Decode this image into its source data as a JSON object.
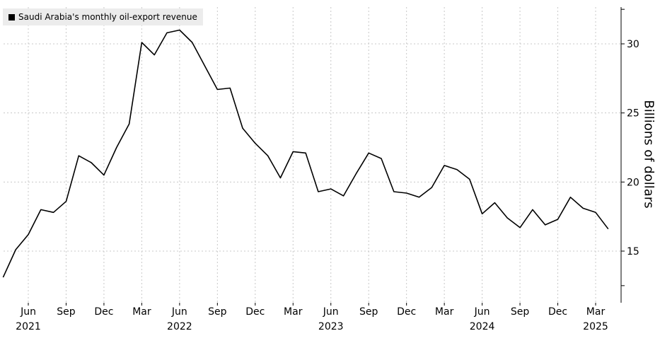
{
  "chart_data": {
    "type": "line",
    "legend": {
      "label": "Saudi Arabia's monthly oil-export revenue",
      "position": "top-left",
      "color": "#000000"
    },
    "ylabel": "Billions of dollars",
    "ylim": [
      12.5,
      32.5
    ],
    "yticks": [
      15,
      20,
      25,
      30
    ],
    "y_axis_side": "right",
    "grid": true,
    "grid_style": "dotted",
    "line_color": "#000000",
    "x_tick_labels": [
      {
        "date": "2021-06",
        "month": "Jun",
        "year": "2021"
      },
      {
        "date": "2021-09",
        "month": "Sep",
        "year": ""
      },
      {
        "date": "2021-12",
        "month": "Dec",
        "year": ""
      },
      {
        "date": "2022-03",
        "month": "Mar",
        "year": ""
      },
      {
        "date": "2022-06",
        "month": "Jun",
        "year": "2022"
      },
      {
        "date": "2022-09",
        "month": "Sep",
        "year": ""
      },
      {
        "date": "2022-12",
        "month": "Dec",
        "year": ""
      },
      {
        "date": "2023-03",
        "month": "Mar",
        "year": ""
      },
      {
        "date": "2023-06",
        "month": "Jun",
        "year": "2023"
      },
      {
        "date": "2023-09",
        "month": "Sep",
        "year": ""
      },
      {
        "date": "2023-12",
        "month": "Dec",
        "year": ""
      },
      {
        "date": "2024-03",
        "month": "Mar",
        "year": ""
      },
      {
        "date": "2024-06",
        "month": "Jun",
        "year": "2024"
      },
      {
        "date": "2024-09",
        "month": "Sep",
        "year": ""
      },
      {
        "date": "2024-12",
        "month": "Dec",
        "year": ""
      },
      {
        "date": "2025-03",
        "month": "Mar",
        "year": "2025"
      }
    ],
    "series": [
      {
        "x": [
          "2021-04",
          "2021-05",
          "2021-06",
          "2021-07",
          "2021-08",
          "2021-09",
          "2021-10",
          "2021-11",
          "2021-12",
          "2022-01",
          "2022-02",
          "2022-03",
          "2022-04",
          "2022-05",
          "2022-06",
          "2022-07",
          "2022-08",
          "2022-09",
          "2022-10",
          "2022-11",
          "2022-12",
          "2023-01",
          "2023-02",
          "2023-03",
          "2023-04",
          "2023-05",
          "2023-06",
          "2023-07",
          "2023-08",
          "2023-09",
          "2023-10",
          "2023-11",
          "2023-12",
          "2024-01",
          "2024-02",
          "2024-03",
          "2024-04",
          "2024-05",
          "2024-06",
          "2024-07",
          "2024-08",
          "2024-09",
          "2024-10",
          "2024-11",
          "2024-12",
          "2025-01",
          "2025-02",
          "2025-03",
          "2025-04"
        ],
        "values": [
          13.1,
          15.1,
          16.2,
          18.0,
          17.8,
          18.6,
          21.9,
          21.4,
          20.5,
          22.5,
          24.2,
          30.1,
          29.2,
          30.8,
          31.0,
          30.1,
          28.4,
          26.7,
          26.8,
          23.9,
          22.8,
          21.9,
          20.3,
          22.2,
          22.1,
          19.3,
          19.5,
          19.0,
          20.6,
          22.1,
          21.7,
          19.3,
          19.2,
          18.9,
          19.6,
          21.2,
          20.9,
          20.2,
          17.7,
          18.5,
          17.4,
          16.7,
          18.0,
          16.9,
          17.3,
          18.9,
          18.1,
          17.8,
          16.6
        ]
      }
    ]
  }
}
